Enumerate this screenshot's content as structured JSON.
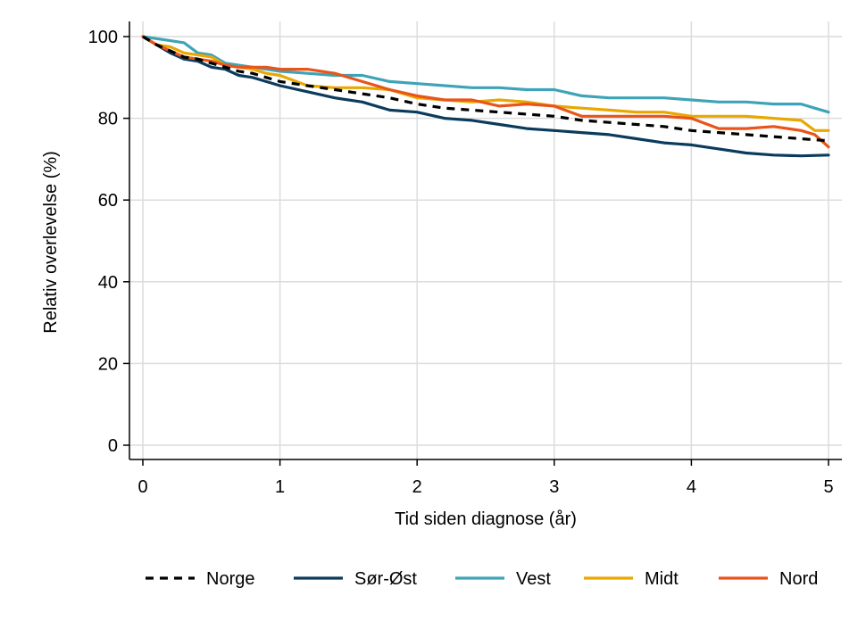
{
  "chart_data": {
    "type": "line",
    "title": "",
    "xlabel": "Tid siden diagnose (år)",
    "ylabel": "Relativ overlevelse (%)",
    "xlim": [
      0,
      5
    ],
    "ylim": [
      0,
      100
    ],
    "xticks": [
      0,
      1,
      2,
      3,
      4,
      5
    ],
    "yticks": [
      0,
      20,
      40,
      60,
      80,
      100
    ],
    "xtick_labels": [
      "0",
      "1",
      "2",
      "3",
      "4",
      "5"
    ],
    "ytick_labels": [
      "0",
      "20",
      "40",
      "60",
      "80",
      "100"
    ],
    "grid": "vertical and horizontal, light gray",
    "legend_position": "bottom",
    "series": [
      {
        "name": "Norge",
        "color": "#000000",
        "dashed": true,
        "x": [
          0,
          0.1,
          0.2,
          0.3,
          0.4,
          0.5,
          0.6,
          0.7,
          0.8,
          0.9,
          1.0,
          1.2,
          1.4,
          1.6,
          1.8,
          2.0,
          2.2,
          2.4,
          2.6,
          2.8,
          3.0,
          3.2,
          3.4,
          3.6,
          3.8,
          4.0,
          4.2,
          4.4,
          4.6,
          4.8,
          5.0
        ],
        "y": [
          100,
          98,
          96.5,
          95,
          94.5,
          93.5,
          92.5,
          91.5,
          91,
          90,
          89,
          88,
          87,
          86,
          85,
          83.5,
          82.5,
          82,
          81.5,
          81,
          80.5,
          79.5,
          79,
          78.5,
          78,
          77,
          76.5,
          76,
          75.5,
          75,
          74.5
        ]
      },
      {
        "name": "Sør-Øst",
        "color": "#0b3b5c",
        "dashed": false,
        "x": [
          0,
          0.1,
          0.2,
          0.3,
          0.4,
          0.5,
          0.6,
          0.7,
          0.8,
          0.9,
          1.0,
          1.2,
          1.4,
          1.6,
          1.8,
          2.0,
          2.2,
          2.4,
          2.6,
          2.8,
          3.0,
          3.2,
          3.4,
          3.6,
          3.8,
          4.0,
          4.2,
          4.4,
          4.6,
          4.8,
          5.0
        ],
        "y": [
          100,
          98,
          96,
          94.5,
          94,
          92.5,
          92,
          90.5,
          90,
          89,
          88,
          86.5,
          85,
          84,
          82,
          81.5,
          80,
          79.5,
          78.5,
          77.5,
          77,
          76.5,
          76,
          75,
          74,
          73.5,
          72.5,
          71.5,
          71,
          70.8,
          71
        ]
      },
      {
        "name": "Vest",
        "color": "#3fa3b8",
        "dashed": false,
        "x": [
          0,
          0.1,
          0.2,
          0.3,
          0.4,
          0.5,
          0.6,
          0.7,
          0.8,
          0.9,
          1.0,
          1.2,
          1.4,
          1.6,
          1.8,
          2.0,
          2.2,
          2.4,
          2.6,
          2.8,
          3.0,
          3.2,
          3.4,
          3.6,
          3.8,
          4.0,
          4.2,
          4.4,
          4.6,
          4.8,
          4.9,
          5.0
        ],
        "y": [
          100,
          99.5,
          99,
          98.5,
          96,
          95.5,
          93.5,
          93,
          92.5,
          92,
          91.5,
          91,
          90.5,
          90.5,
          89,
          88.5,
          88,
          87.5,
          87.5,
          87,
          87,
          85.5,
          85,
          85,
          85,
          84.5,
          84,
          84,
          83.5,
          83.5,
          82.5,
          81.5
        ]
      },
      {
        "name": "Midt",
        "color": "#e8a800",
        "dashed": false,
        "x": [
          0,
          0.1,
          0.2,
          0.3,
          0.4,
          0.5,
          0.6,
          0.7,
          0.8,
          0.9,
          1.0,
          1.2,
          1.4,
          1.6,
          1.8,
          2.0,
          2.2,
          2.4,
          2.6,
          2.8,
          3.0,
          3.2,
          3.4,
          3.6,
          3.8,
          4.0,
          4.2,
          4.4,
          4.6,
          4.8,
          4.9,
          5.0
        ],
        "y": [
          100,
          98,
          97.5,
          96,
          95.5,
          95,
          93,
          92.5,
          92,
          91,
          90.5,
          88,
          87.5,
          87.5,
          87,
          85,
          84.5,
          84,
          84.5,
          84,
          83,
          82.5,
          82,
          81.5,
          81.5,
          80.5,
          80.5,
          80.5,
          80,
          79.5,
          77,
          77
        ]
      },
      {
        "name": "Nord",
        "color": "#e8541a",
        "dashed": false,
        "x": [
          0,
          0.1,
          0.2,
          0.3,
          0.4,
          0.5,
          0.6,
          0.7,
          0.8,
          0.9,
          1.0,
          1.2,
          1.4,
          1.6,
          1.8,
          2.0,
          2.2,
          2.4,
          2.6,
          2.8,
          3.0,
          3.2,
          3.4,
          3.6,
          3.8,
          4.0,
          4.2,
          4.4,
          4.6,
          4.8,
          4.9,
          5.0
        ],
        "y": [
          100,
          98,
          96.5,
          95,
          94.5,
          94,
          93,
          92.5,
          92.5,
          92.5,
          92,
          92,
          91,
          89,
          87,
          85.5,
          84.5,
          84.5,
          83,
          83.5,
          83,
          80.5,
          80.5,
          80.5,
          80.5,
          80,
          77.5,
          77.5,
          78,
          77,
          76,
          73
        ]
      }
    ]
  }
}
